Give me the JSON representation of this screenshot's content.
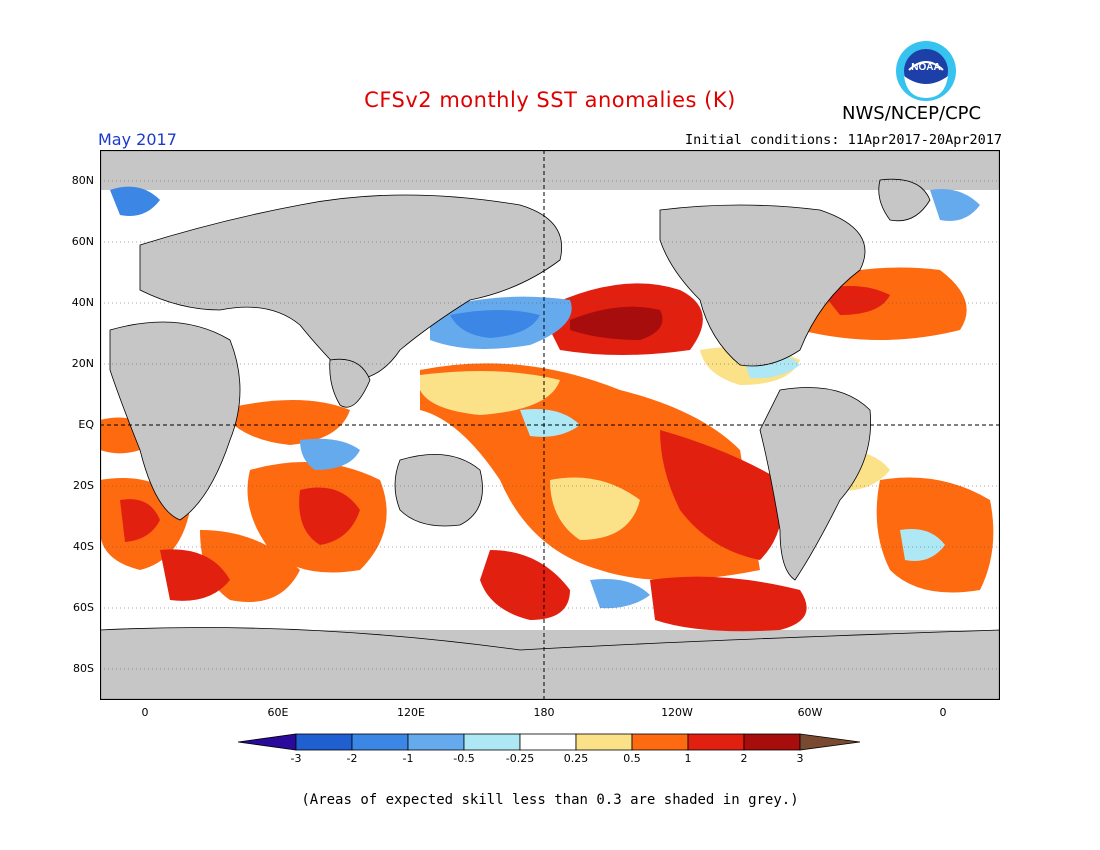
{
  "header": {
    "title": "CFSv2 monthly SST anomalies (K)",
    "agency": "NWS/NCEP/CPC",
    "month": "May 2017",
    "initial_conditions": "Initial conditions: 11Apr2017-20Apr2017"
  },
  "logo": {
    "text": "NOAA",
    "icon": "noaa-logo"
  },
  "axes": {
    "lat_labels": [
      "80N",
      "60N",
      "40N",
      "20N",
      "EQ",
      "20S",
      "40S",
      "60S",
      "80S"
    ],
    "lon_labels": [
      "0",
      "60E",
      "120E",
      "180",
      "120W",
      "60W",
      "0"
    ]
  },
  "colorbar": {
    "labels": [
      "-3",
      "-2",
      "-1",
      "-0.5",
      "-0.25",
      "0.25",
      "0.5",
      "1",
      "2",
      "3"
    ],
    "colors": [
      "#2a0a9a",
      "#1f5fd0",
      "#3c86e6",
      "#66aaee",
      "#aee8f4",
      "#ffffff",
      "#fbe187",
      "#fd6a10",
      "#e22010",
      "#a80d0d",
      "#7a4a30"
    ]
  },
  "map_colors": {
    "land": "#c6c6c6",
    "no_skill": "#c6c6c6"
  },
  "footnote": "(Areas of expected skill less than 0.3 are shaded in grey.)"
}
